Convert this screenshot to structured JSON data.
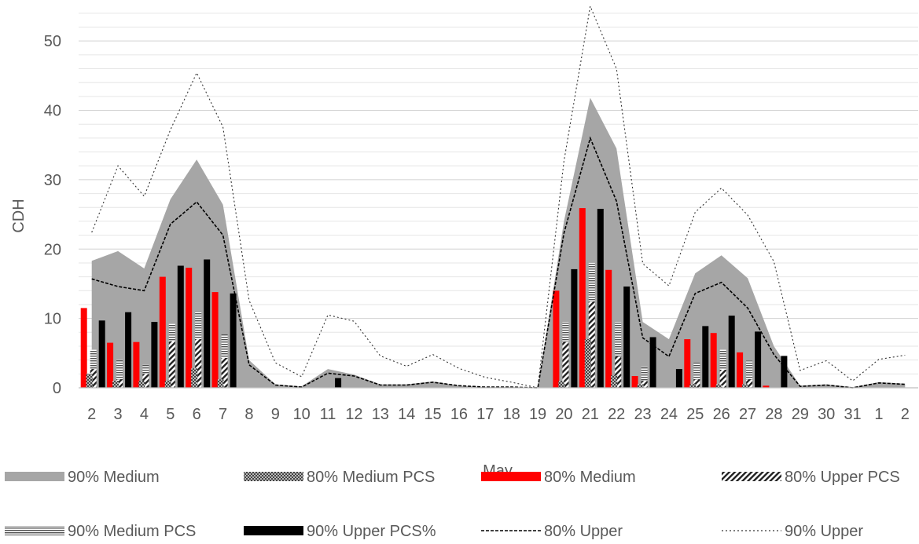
{
  "chart_data": {
    "type": "bar",
    "title": "",
    "xlabel": "May",
    "ylabel": "CDH",
    "ylim": [
      0,
      55
    ],
    "yticks": [
      0,
      10,
      20,
      30,
      40,
      50
    ],
    "grid": true,
    "legend_position": "bottom",
    "categories": [
      "2",
      "3",
      "4",
      "5",
      "6",
      "7",
      "8",
      "9",
      "10",
      "11",
      "12",
      "13",
      "14",
      "15",
      "16",
      "17",
      "18",
      "19",
      "20",
      "21",
      "22",
      "23",
      "24",
      "25",
      "26",
      "27",
      "28",
      "29",
      "30",
      "31",
      "1",
      "2"
    ],
    "series": [
      {
        "name": "90% Medium",
        "kind": "area",
        "color": "#a6a6a6",
        "values": [
          18.3,
          19.7,
          17.2,
          27.2,
          32.9,
          26.4,
          4.0,
          0.5,
          0.2,
          2.7,
          1.9,
          0.5,
          0.5,
          0.9,
          0.3,
          0.1,
          0.1,
          0.0,
          24.0,
          41.8,
          34.5,
          9.5,
          7.0,
          16.5,
          19.1,
          15.8,
          6.0,
          0.3,
          0.5,
          0.1,
          0.8,
          0.6
        ]
      },
      {
        "name": "80% Medium PCS",
        "kind": "bar",
        "color": "#595959",
        "values": [
          2.0,
          1.0,
          1.0,
          1.0,
          2.8,
          1.2,
          0,
          0,
          0,
          0,
          0,
          0,
          0,
          0,
          0,
          0,
          0,
          0,
          1.0,
          7.0,
          1.8,
          0.5,
          0,
          0.5,
          0.5,
          0.5,
          0,
          0,
          0,
          0,
          0,
          0
        ]
      },
      {
        "name": "80% Medium",
        "kind": "bar",
        "color": "#ff0000",
        "values": [
          11.5,
          6.5,
          6.6,
          16.0,
          17.3,
          13.8,
          0,
          0,
          0,
          0,
          0,
          0,
          0,
          0,
          0,
          0,
          0,
          0,
          14.0,
          25.9,
          17.0,
          1.7,
          0,
          7.0,
          7.9,
          5.1,
          0.3,
          0,
          0,
          0,
          0,
          0
        ]
      },
      {
        "name": "80% Upper PCS",
        "kind": "bar",
        "color": "#404040",
        "values": [
          2.7,
          1.2,
          2.0,
          6.7,
          7.0,
          4.3,
          0,
          0,
          0,
          0,
          0,
          0,
          0,
          0,
          0,
          0,
          0,
          0,
          6.6,
          12.4,
          4.5,
          1.0,
          0,
          1.2,
          2.6,
          1.2,
          0,
          0,
          0,
          0,
          0,
          0
        ]
      },
      {
        "name": "90% Medium PCS",
        "kind": "bar",
        "color": "#7f7f7f",
        "values": [
          5.5,
          4.0,
          3.3,
          9.2,
          11.0,
          7.7,
          0,
          0,
          0,
          0,
          0,
          0,
          0,
          0,
          0,
          0,
          0,
          0,
          9.5,
          18.0,
          9.5,
          3.0,
          0,
          3.6,
          5.5,
          3.9,
          0,
          0,
          0,
          0,
          0,
          0
        ]
      },
      {
        "name": "90% Upper PCS%",
        "kind": "bar",
        "color": "#000000",
        "values": [
          9.7,
          10.9,
          9.5,
          17.6,
          18.5,
          13.6,
          0,
          0,
          0,
          1.4,
          0,
          0,
          0,
          0,
          0,
          0,
          0,
          0,
          17.1,
          25.8,
          14.6,
          7.3,
          2.7,
          8.9,
          10.4,
          8.1,
          4.6,
          0,
          0,
          0,
          0,
          0
        ]
      },
      {
        "name": "80% Upper",
        "kind": "line",
        "dash": "dashed",
        "color": "#000000",
        "values": [
          15.7,
          14.6,
          14.0,
          23.6,
          26.8,
          22.0,
          3.3,
          0.4,
          0.1,
          2.1,
          1.7,
          0.4,
          0.4,
          0.8,
          0.3,
          0.1,
          0.1,
          0.0,
          22.3,
          36.0,
          26.9,
          7.2,
          4.5,
          13.6,
          15.2,
          11.5,
          4.8,
          0.2,
          0.4,
          0.0,
          0.7,
          0.5
        ]
      },
      {
        "name": "90% Upper",
        "kind": "line",
        "dash": "dotted",
        "color": "#000000",
        "values": [
          22.4,
          32.0,
          27.6,
          37.2,
          45.4,
          37.6,
          12.6,
          3.6,
          1.6,
          10.5,
          9.6,
          4.6,
          3.1,
          4.8,
          2.8,
          1.5,
          0.8,
          0.0,
          32.7,
          55.0,
          46.0,
          17.9,
          14.7,
          25.3,
          28.8,
          24.9,
          18.2,
          2.5,
          3.9,
          1.0,
          4.1,
          4.7
        ]
      }
    ],
    "legend": [
      {
        "name": "90% Medium",
        "swatch": "gray-fill"
      },
      {
        "name": "80% Medium PCS",
        "swatch": "crosshatch"
      },
      {
        "name": "80% Medium",
        "swatch": "red-fill"
      },
      {
        "name": "80% Upper PCS",
        "swatch": "diagonal-stripes"
      },
      {
        "name": "90% Medium PCS",
        "swatch": "horizontal-stripes"
      },
      {
        "name": "90% Upper PCS%",
        "swatch": "black-fill"
      },
      {
        "name": "80% Upper",
        "swatch": "dashed-line"
      },
      {
        "name": "90% Upper",
        "swatch": "dotted-line"
      }
    ]
  }
}
